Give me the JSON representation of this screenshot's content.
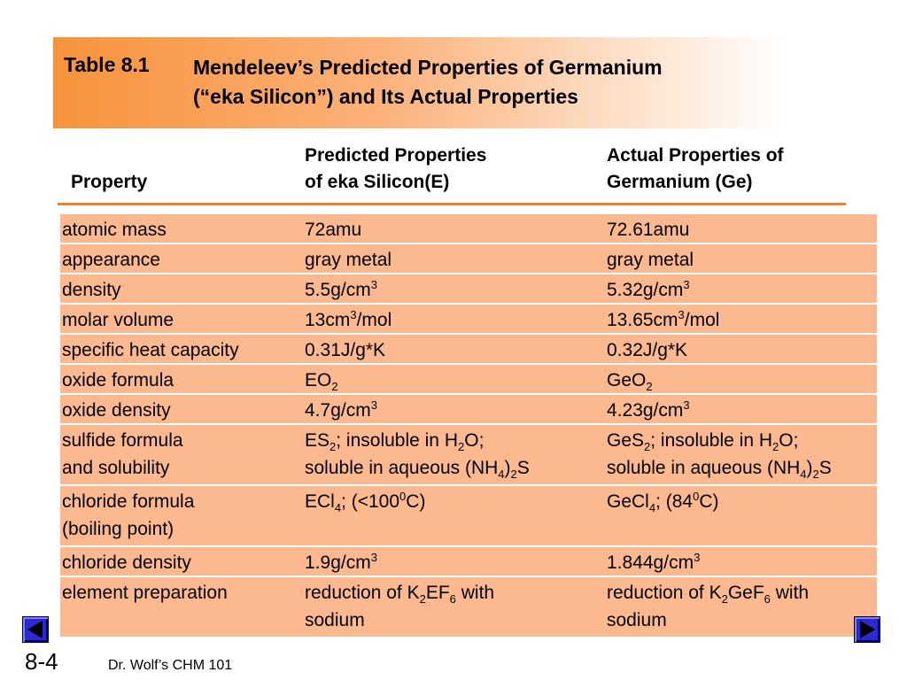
{
  "title": {
    "label": "Table 8.1",
    "lines": [
      "Mendeleev’s Predicted Properties of Germanium",
      "(“eka Silicon”) and Its Actual Properties"
    ]
  },
  "table": {
    "headers": [
      [
        "Property"
      ],
      [
        "Predicted Properties",
        "of eka Silicon(E)"
      ],
      [
        "Actual Properties of",
        "Germanium (Ge)"
      ]
    ],
    "rows": [
      [
        [
          [
            "atomic mass"
          ]
        ],
        [
          [
            "72amu"
          ]
        ],
        [
          [
            "72.61amu"
          ]
        ]
      ],
      [
        [
          [
            "appearance"
          ]
        ],
        [
          [
            "gray metal"
          ]
        ],
        [
          [
            "gray metal"
          ]
        ]
      ],
      [
        [
          [
            "density"
          ]
        ],
        [
          [
            "5.5g/cm",
            {
              "sup": "3"
            }
          ]
        ],
        [
          [
            "5.32g/cm",
            {
              "sup": "3"
            }
          ]
        ]
      ],
      [
        [
          [
            "molar volume"
          ]
        ],
        [
          [
            "13cm",
            {
              "sup": "3"
            },
            "/mol"
          ]
        ],
        [
          [
            "13.65cm",
            {
              "sup": "3"
            },
            "/mol"
          ]
        ]
      ],
      [
        [
          [
            "specific heat capacity"
          ]
        ],
        [
          [
            "0.31J/g*K"
          ]
        ],
        [
          [
            "0.32J/g*K"
          ]
        ]
      ],
      [
        [
          [
            "oxide formula"
          ]
        ],
        [
          [
            "EO",
            {
              "sub": "2"
            }
          ]
        ],
        [
          [
            "GeO",
            {
              "sub": "2"
            }
          ]
        ]
      ],
      [
        [
          [
            "oxide density"
          ]
        ],
        [
          [
            "4.7g/cm",
            {
              "sup": "3"
            }
          ]
        ],
        [
          [
            "4.23g/cm",
            {
              "sup": "3"
            }
          ]
        ]
      ],
      [
        [
          [
            "sulfide formula"
          ],
          [
            "and solubility"
          ]
        ],
        [
          [
            "ES",
            {
              "sub": "2"
            },
            "; insoluble in H",
            {
              "sub": "2"
            },
            "O;"
          ],
          [
            "soluble in aqueous (NH",
            {
              "sub": "4"
            },
            ")",
            {
              "sub": "2"
            },
            "S"
          ]
        ],
        [
          [
            "GeS",
            {
              "sub": "2"
            },
            "; insoluble in H",
            {
              "sub": "2"
            },
            "O;"
          ],
          [
            "soluble in aqueous (NH",
            {
              "sub": "4"
            },
            ")",
            {
              "sub": "2"
            },
            "S"
          ]
        ]
      ],
      [
        [
          [
            "chloride formula"
          ],
          [
            "(boiling point)"
          ]
        ],
        [
          [
            "ECl",
            {
              "sub": "4"
            },
            "; (<100",
            {
              "sup": "0"
            },
            "C)"
          ]
        ],
        [
          [
            "GeCl",
            {
              "sub": "4"
            },
            "; (84",
            {
              "sup": "0"
            },
            "C)"
          ]
        ]
      ],
      [
        [
          [
            "chloride density"
          ]
        ],
        [
          [
            "1.9g/cm",
            {
              "sup": "3"
            }
          ]
        ],
        [
          [
            "1.844g/cm",
            {
              "sup": "3"
            }
          ]
        ]
      ],
      [
        [
          [
            "element preparation"
          ]
        ],
        [
          [
            "reduction of K",
            {
              "sub": "2"
            },
            "EF",
            {
              "sub": "6"
            },
            " with"
          ],
          [
            "sodium"
          ]
        ],
        [
          [
            "reduction of K",
            {
              "sub": "2"
            },
            "GeF",
            {
              "sub": "6"
            },
            " with"
          ],
          [
            "sodium"
          ]
        ]
      ]
    ]
  },
  "footer": {
    "slide_number": "8-4",
    "course": "Dr. Wolf’s CHM 101"
  }
}
